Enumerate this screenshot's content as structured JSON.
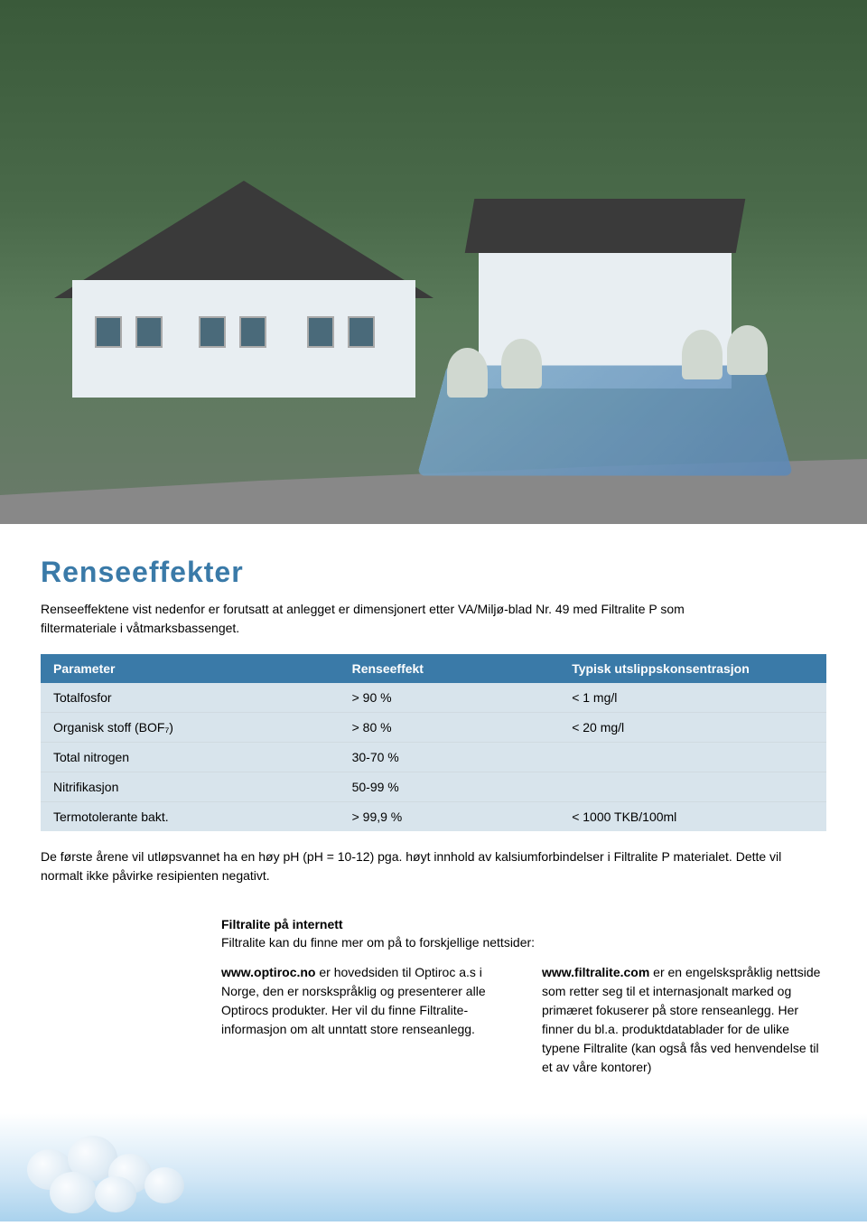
{
  "title": "Renseeffekter",
  "title_color": "#3a7aa8",
  "intro": "Renseeffektene vist nedenfor er forutsatt at anlegget er dimensjonert etter VA/Miljø-blad Nr. 49 med Filtralite P som filtermateriale i våtmarksbassenget.",
  "table": {
    "header_bg": "#3a7aa8",
    "row_bg": "#d8e4ec",
    "columns": [
      "Parameter",
      "Renseeffekt",
      "Typisk utslippskonsentrasjon"
    ],
    "col_widths": [
      "38%",
      "28%",
      "34%"
    ],
    "rows": [
      [
        "Totalfosfor",
        "> 90 %",
        "< 1 mg/l"
      ],
      [
        "Organisk stoff (BOF₇)",
        "> 80 %",
        "< 20 mg/l"
      ],
      [
        "Total nitrogen",
        "30-70 %",
        ""
      ],
      [
        "Nitrifikasjon",
        "50-99 %",
        ""
      ],
      [
        "Termotolerante bakt.",
        "> 99,9 %",
        "< 1000 TKB/100ml"
      ]
    ]
  },
  "footnote": "De første årene vil utløpsvannet ha en høy pH (pH = 10-12) pga. høyt innhold av kalsiumforbindelser i Filtralite P materialet. Dette vil normalt ikke påvirke resipienten negativt.",
  "internet": {
    "title": "Filtralite på internett",
    "intro": "Filtralite kan du finne mer om på to forskjellige nettsider:",
    "left": {
      "bold": "www.optiroc.no",
      "text": " er hovedsiden til Optiroc a.s i Norge, den er norskspråklig og presenterer alle Optirocs produkter. Her vil du finne Filtralite-informasjon om alt unntatt store renseanlegg."
    },
    "right": {
      "bold": "www.filtralite.com",
      "text": " er en engelskspråklig nettside som retter seg til et internasjonalt marked og primæret fokuserer på store renseanlegg. Her finner du bl.a. produktdatablader for de ulike typene Filtralite (kan også fås ved henvendelse til et av våre kontorer)"
    }
  },
  "colors": {
    "page_bg": "#ffffff",
    "text": "#000000",
    "footer_blue": "#a8cde8"
  }
}
